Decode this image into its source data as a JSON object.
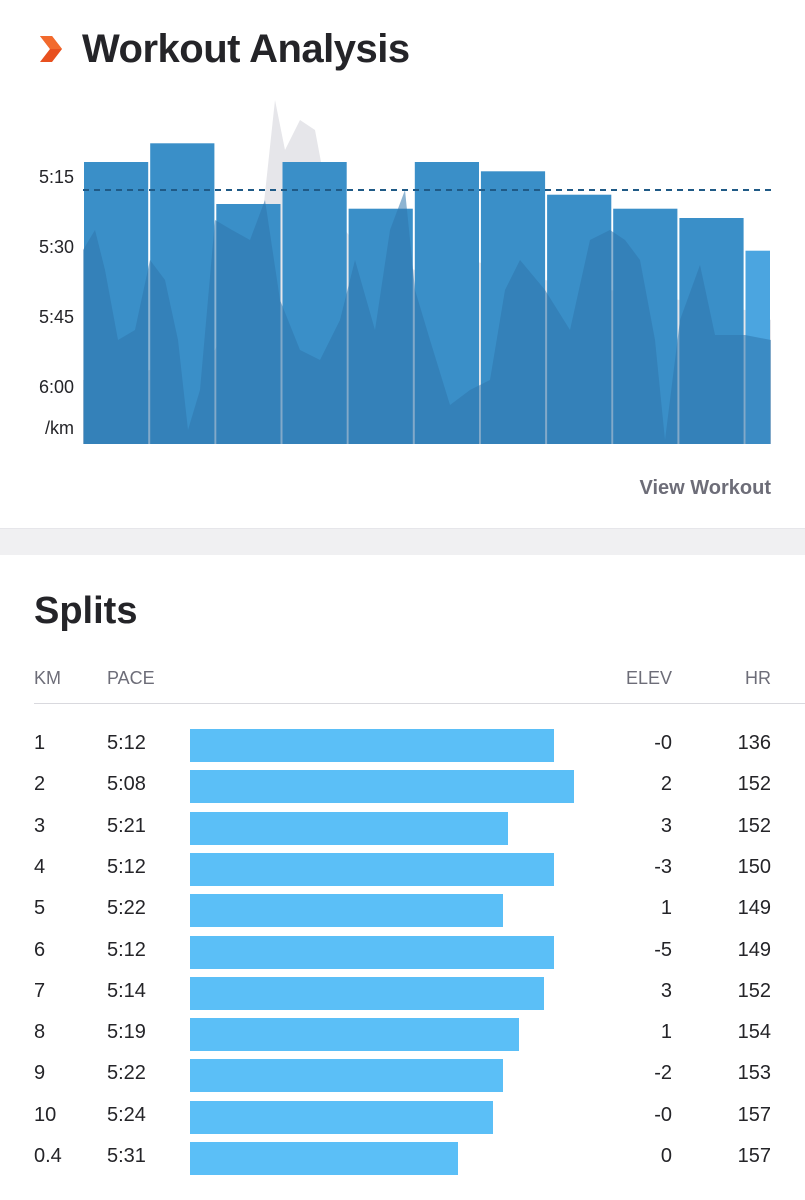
{
  "header": {
    "title": "Workout Analysis"
  },
  "chart_data": {
    "type": "bar",
    "yaxis_unit": "/km",
    "y_ticks": [
      "5:15",
      "5:30",
      "5:45",
      "6:00"
    ],
    "y_tick_values": [
      315,
      330,
      345,
      360
    ],
    "reference_line": 318,
    "categories": [
      "1",
      "2",
      "3",
      "4",
      "5",
      "6",
      "7",
      "8",
      "9",
      "10",
      "0.4"
    ],
    "values": [
      312,
      308,
      321,
      312,
      322,
      312,
      314,
      319,
      322,
      324,
      331
    ],
    "km_distance": [
      1,
      1,
      1,
      1,
      1,
      1,
      1,
      1,
      1,
      1,
      0.4
    ],
    "colors": {
      "bar": "#3a8fc8",
      "bar_last": "#4ba5e0",
      "overlay": "#2f77ad",
      "reference": "#1f5a86"
    }
  },
  "view_workout_label": "View Workout",
  "splits": {
    "title": "Splits",
    "columns": {
      "km": "KM",
      "pace": "PACE",
      "elev": "ELEV",
      "hr": "HR"
    },
    "bar_color": "#5bbff7",
    "rows": [
      {
        "km": "1",
        "pace": "5:12",
        "pace_sec": 312,
        "elev": "-0",
        "hr": "136"
      },
      {
        "km": "2",
        "pace": "5:08",
        "pace_sec": 308,
        "elev": "2",
        "hr": "152"
      },
      {
        "km": "3",
        "pace": "5:21",
        "pace_sec": 321,
        "elev": "3",
        "hr": "152"
      },
      {
        "km": "4",
        "pace": "5:12",
        "pace_sec": 312,
        "elev": "-3",
        "hr": "150"
      },
      {
        "km": "5",
        "pace": "5:22",
        "pace_sec": 322,
        "elev": "1",
        "hr": "149"
      },
      {
        "km": "6",
        "pace": "5:12",
        "pace_sec": 312,
        "elev": "-5",
        "hr": "149"
      },
      {
        "km": "7",
        "pace": "5:14",
        "pace_sec": 314,
        "elev": "3",
        "hr": "152"
      },
      {
        "km": "8",
        "pace": "5:19",
        "pace_sec": 319,
        "elev": "1",
        "hr": "154"
      },
      {
        "km": "9",
        "pace": "5:22",
        "pace_sec": 322,
        "elev": "-2",
        "hr": "153"
      },
      {
        "km": "10",
        "pace": "5:24",
        "pace_sec": 324,
        "elev": "-0",
        "hr": "157"
      },
      {
        "km": "0.4",
        "pace": "5:31",
        "pace_sec": 331,
        "elev": "0",
        "hr": "157"
      }
    ]
  }
}
